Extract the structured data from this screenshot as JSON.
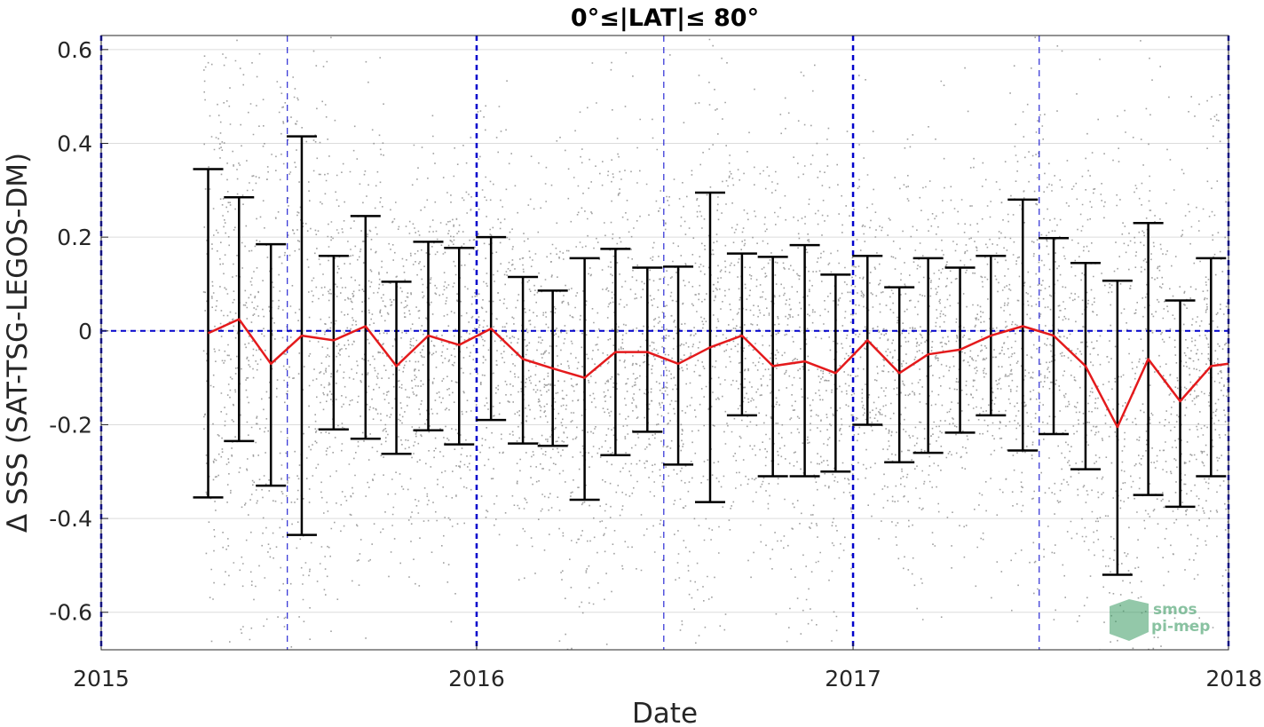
{
  "chart_data": {
    "type": "scatter",
    "title": "0°≤|LAT|≤ 80°",
    "xlabel": "Date",
    "ylabel": "Δ SSS (SAT-TSG-LEGOS-DM)",
    "xlim": [
      "2015-01-01",
      "2018-01-01"
    ],
    "ylim": [
      -0.68,
      0.63
    ],
    "xticks": [
      {
        "date": "2015-01-01",
        "label": "2015"
      },
      {
        "date": "2016-01-01",
        "label": "2016"
      },
      {
        "date": "2017-01-01",
        "label": "2017"
      },
      {
        "date": "2018-01-01",
        "label": "2018"
      }
    ],
    "yticks": [
      {
        "value": 0.6,
        "label": "0.6"
      },
      {
        "value": 0.4,
        "label": "0.4"
      },
      {
        "value": 0.2,
        "label": "0.2"
      },
      {
        "value": 0,
        "label": "0"
      },
      {
        "value": -0.2,
        "label": "-0.2"
      },
      {
        "value": -0.4,
        "label": "-0.4"
      },
      {
        "value": -0.6,
        "label": "-0.6"
      }
    ],
    "grid": true,
    "reference_lines": {
      "horizontal_zero": 0,
      "vertical_dates": [
        "2015-01-01",
        "2015-07-01",
        "2016-01-01",
        "2016-07-01",
        "2017-01-01",
        "2017-07-01",
        "2018-01-01"
      ]
    },
    "scatter_extent": {
      "start": "2015-04-10",
      "end": "2018-01-01"
    },
    "monthly_mean": {
      "dates": [
        "2015-04-15",
        "2015-05-15",
        "2015-06-15",
        "2015-07-15",
        "2015-08-15",
        "2015-09-15",
        "2015-10-15",
        "2015-11-15",
        "2015-12-15",
        "2016-01-15",
        "2016-02-15",
        "2016-03-15",
        "2016-04-15",
        "2016-05-15",
        "2016-06-15",
        "2016-07-15",
        "2016-08-15",
        "2016-09-15",
        "2016-10-15",
        "2016-11-15",
        "2016-12-15",
        "2017-01-15",
        "2017-02-15",
        "2017-03-15",
        "2017-04-15",
        "2017-05-15",
        "2017-06-15",
        "2017-07-15",
        "2017-08-15",
        "2017-09-15",
        "2017-10-15",
        "2017-11-15",
        "2017-12-15",
        "2018-01-01"
      ],
      "mean": [
        -0.005,
        0.025,
        -0.07,
        -0.01,
        -0.02,
        0.01,
        -0.075,
        -0.01,
        -0.03,
        0.005,
        -0.06,
        -0.08,
        -0.1,
        -0.045,
        -0.045,
        -0.07,
        -0.035,
        -0.01,
        -0.075,
        -0.065,
        -0.09,
        -0.02,
        -0.09,
        -0.05,
        -0.04,
        -0.01,
        0.01,
        -0.01,
        -0.075,
        -0.205,
        -0.06,
        -0.15,
        -0.075,
        -0.07
      ],
      "upper": [
        0.345,
        0.285,
        0.185,
        0.415,
        0.16,
        0.245,
        0.105,
        0.19,
        0.177,
        0.2,
        0.115,
        0.086,
        0.155,
        0.175,
        0.135,
        0.137,
        0.295,
        0.165,
        0.158,
        0.183,
        0.12,
        0.16,
        0.093,
        0.155,
        0.135,
        0.16,
        0.28,
        0.198,
        0.145,
        0.107,
        0.23,
        0.065,
        0.155,
        null
      ],
      "lower": [
        -0.355,
        -0.235,
        -0.33,
        -0.435,
        -0.21,
        -0.23,
        -0.262,
        -0.212,
        -0.242,
        -0.19,
        -0.24,
        -0.245,
        -0.36,
        -0.265,
        -0.215,
        -0.285,
        -0.365,
        -0.18,
        -0.31,
        -0.31,
        -0.3,
        -0.2,
        -0.28,
        -0.26,
        -0.217,
        -0.18,
        -0.255,
        -0.22,
        -0.295,
        -0.52,
        -0.35,
        -0.375,
        -0.31,
        null
      ]
    },
    "colors": {
      "scatter": "#808080",
      "mean_line": "#e41a1c",
      "error_bars": "#000000",
      "reference_lines": "#0000cc",
      "grid": "#dcdcdc",
      "logo": "#3a9a63"
    }
  },
  "logo": {
    "line1": "smos",
    "line2": "pi-mep"
  }
}
